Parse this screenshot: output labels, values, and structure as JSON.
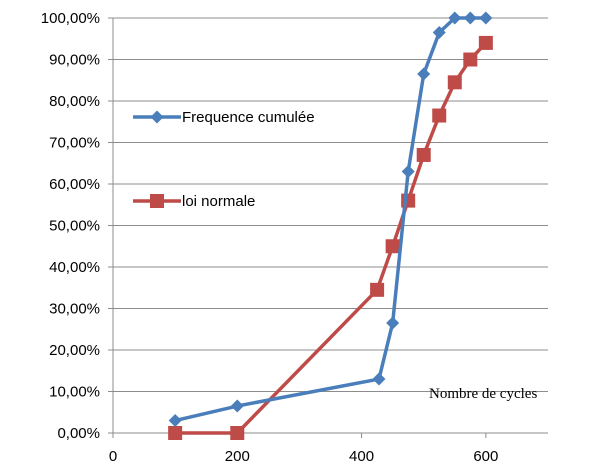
{
  "chart_data": {
    "type": "line",
    "title": "",
    "xlabel": "Nombre de cycles",
    "ylabel": "",
    "xlim": [
      0,
      700
    ],
    "ylim": [
      0,
      1
    ],
    "x_ticks": [
      0,
      200,
      400,
      600
    ],
    "x_tick_labels": [
      "0",
      "200",
      "400",
      "600"
    ],
    "y_ticks": [
      0,
      0.1,
      0.2,
      0.3,
      0.4,
      0.5,
      0.6,
      0.7,
      0.8,
      0.9,
      1.0
    ],
    "y_tick_labels": [
      "0,00%",
      "10,00%",
      "20,00%",
      "30,00%",
      "40,00%",
      "50,00%",
      "60,00%",
      "70,00%",
      "80,00%",
      "90,00%",
      "100,00%"
    ],
    "grid": "horizontal",
    "legend": "left",
    "series": [
      {
        "name": "Frequence cumulée",
        "color": "#4a7ebb",
        "marker": "diamond",
        "x": [
          100,
          200,
          428,
          450,
          475,
          500,
          525,
          550,
          575,
          600
        ],
        "y": [
          0.03,
          0.065,
          0.13,
          0.265,
          0.63,
          0.865,
          0.965,
          1.0,
          1.0,
          1.0
        ]
      },
      {
        "name": "loi normale",
        "color": "#be4b48",
        "marker": "square",
        "x": [
          100,
          200,
          425,
          450,
          475,
          500,
          525,
          550,
          575,
          600
        ],
        "y": [
          0.0,
          0.0,
          0.345,
          0.45,
          0.56,
          0.67,
          0.765,
          0.845,
          0.9,
          0.94
        ]
      }
    ]
  }
}
